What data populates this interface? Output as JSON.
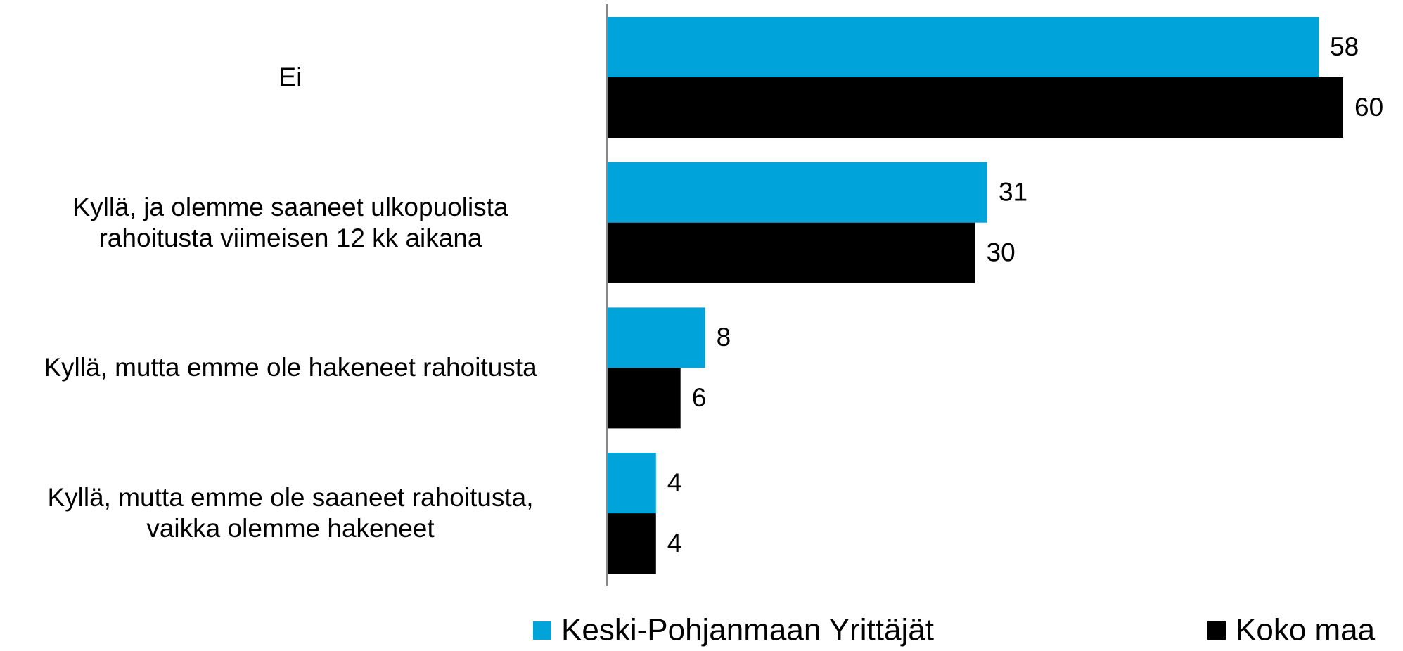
{
  "chart_data": {
    "type": "barh",
    "categories": [
      "Ei",
      "Kyllä, ja olemme saaneet ulkopuolista\nrahoitusta viimeisen 12 kk aikana",
      "Kyllä, mutta emme ole hakeneet rahoitusta",
      "Kyllä, mutta emme ole saaneet rahoitusta,\nvaikka olemme hakeneet"
    ],
    "series": [
      {
        "name": "Keski-Pohjanmaan Yrittäjät",
        "color": "#00a3da",
        "values": [
          58,
          31,
          8,
          4
        ]
      },
      {
        "name": "Koko maa",
        "color": "#000000",
        "values": [
          60,
          30,
          6,
          4
        ]
      }
    ],
    "xlim": [
      0,
      60
    ],
    "legend": "bottom"
  }
}
